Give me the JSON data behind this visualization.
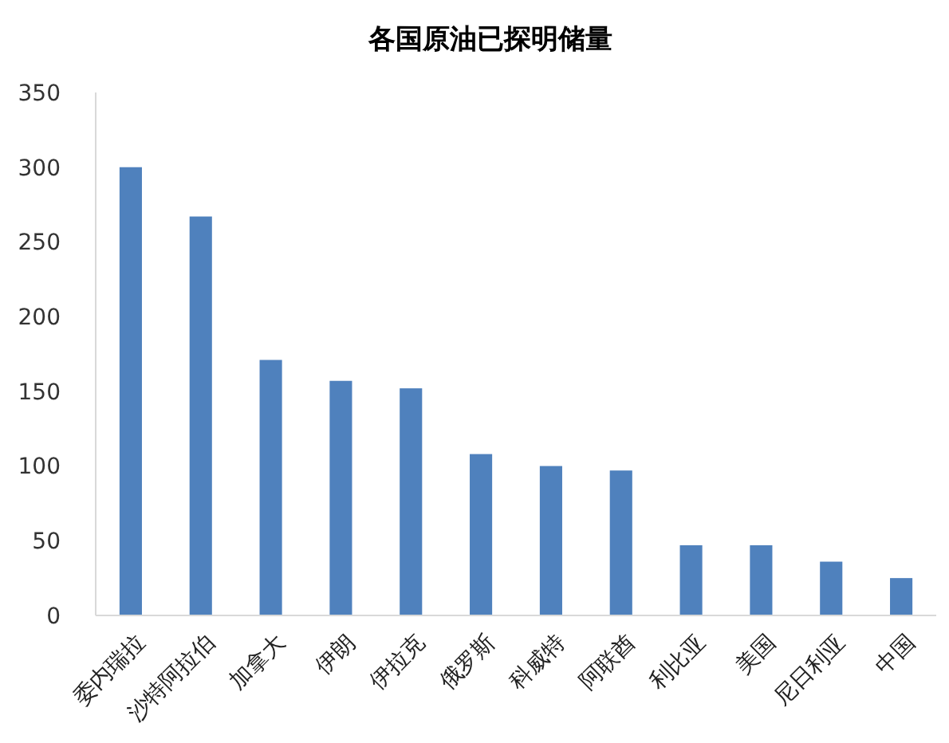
{
  "chart_data": {
    "type": "bar",
    "title": "各国原油已探明储量",
    "categories": [
      "委内瑞拉",
      "沙特阿拉伯",
      "加拿大",
      "伊朗",
      "伊拉克",
      "俄罗斯",
      "科威特",
      "阿联酋",
      "利比亚",
      "美国",
      "尼日利亚",
      "中国"
    ],
    "values": [
      300,
      267,
      171,
      157,
      152,
      108,
      100,
      97,
      47,
      47,
      36,
      25
    ],
    "color": "#4f81bd",
    "ylim": [
      0,
      350
    ],
    "yticks": [
      0,
      50,
      100,
      150,
      200,
      250,
      300,
      350
    ],
    "grid": false
  }
}
